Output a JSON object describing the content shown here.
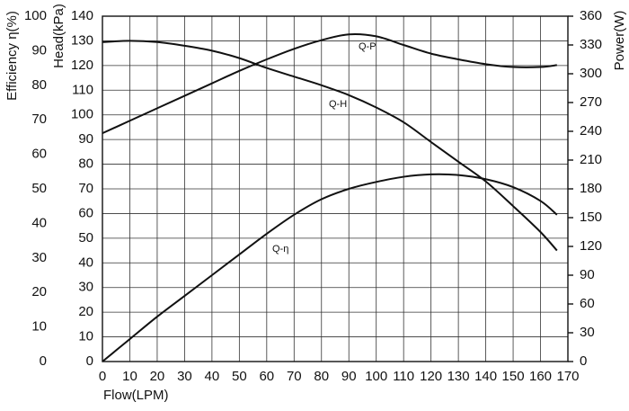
{
  "chart_data": {
    "type": "line",
    "xlabel": "Flow(LPM)",
    "ylabel": "Head(kPa)",
    "y2label": "Power(W)",
    "y3label": "Efficiency η(%)",
    "x": [
      0,
      10,
      20,
      30,
      40,
      50,
      60,
      70,
      80,
      90,
      100,
      110,
      120,
      130,
      140,
      150,
      160,
      166
    ],
    "xlim": [
      0,
      170
    ],
    "xticks": [
      0,
      10,
      20,
      30,
      40,
      50,
      60,
      70,
      80,
      90,
      100,
      110,
      120,
      130,
      140,
      150,
      160,
      170
    ],
    "ylim": [
      0,
      140
    ],
    "yticks": [
      0,
      10,
      20,
      30,
      40,
      50,
      60,
      70,
      80,
      90,
      100,
      110,
      120,
      130,
      140
    ],
    "y2lim": [
      0,
      360
    ],
    "y2ticks": [
      0,
      30,
      60,
      90,
      120,
      150,
      180,
      210,
      240,
      270,
      300,
      330,
      360
    ],
    "y3lim": [
      0,
      100
    ],
    "y3ticks": [
      0,
      10,
      20,
      30,
      40,
      50,
      60,
      70,
      80,
      90,
      100
    ],
    "grid": true,
    "series": [
      {
        "name": "Q-H",
        "color": "#111111",
        "axis": "y",
        "values": [
          129.5,
          130,
          129.5,
          128,
          126,
          123,
          119,
          115.5,
          112,
          108,
          103,
          97,
          89,
          81,
          73,
          63,
          52.5,
          45
        ]
      },
      {
        "name": "Q-P",
        "color": "#111111",
        "axis": "y2",
        "values": [
          238,
          251,
          264,
          277,
          290,
          303,
          315,
          326,
          335,
          341,
          339,
          330,
          321,
          315,
          310,
          307,
          307,
          309
        ]
      },
      {
        "name": "Q-η",
        "color": "#111111",
        "axis": "y3",
        "values": [
          0,
          6.5,
          13,
          19,
          25,
          31,
          37,
          42.5,
          47,
          50,
          52,
          53.5,
          54.2,
          54,
          52.8,
          50.5,
          46.5,
          42.5
        ]
      }
    ]
  }
}
